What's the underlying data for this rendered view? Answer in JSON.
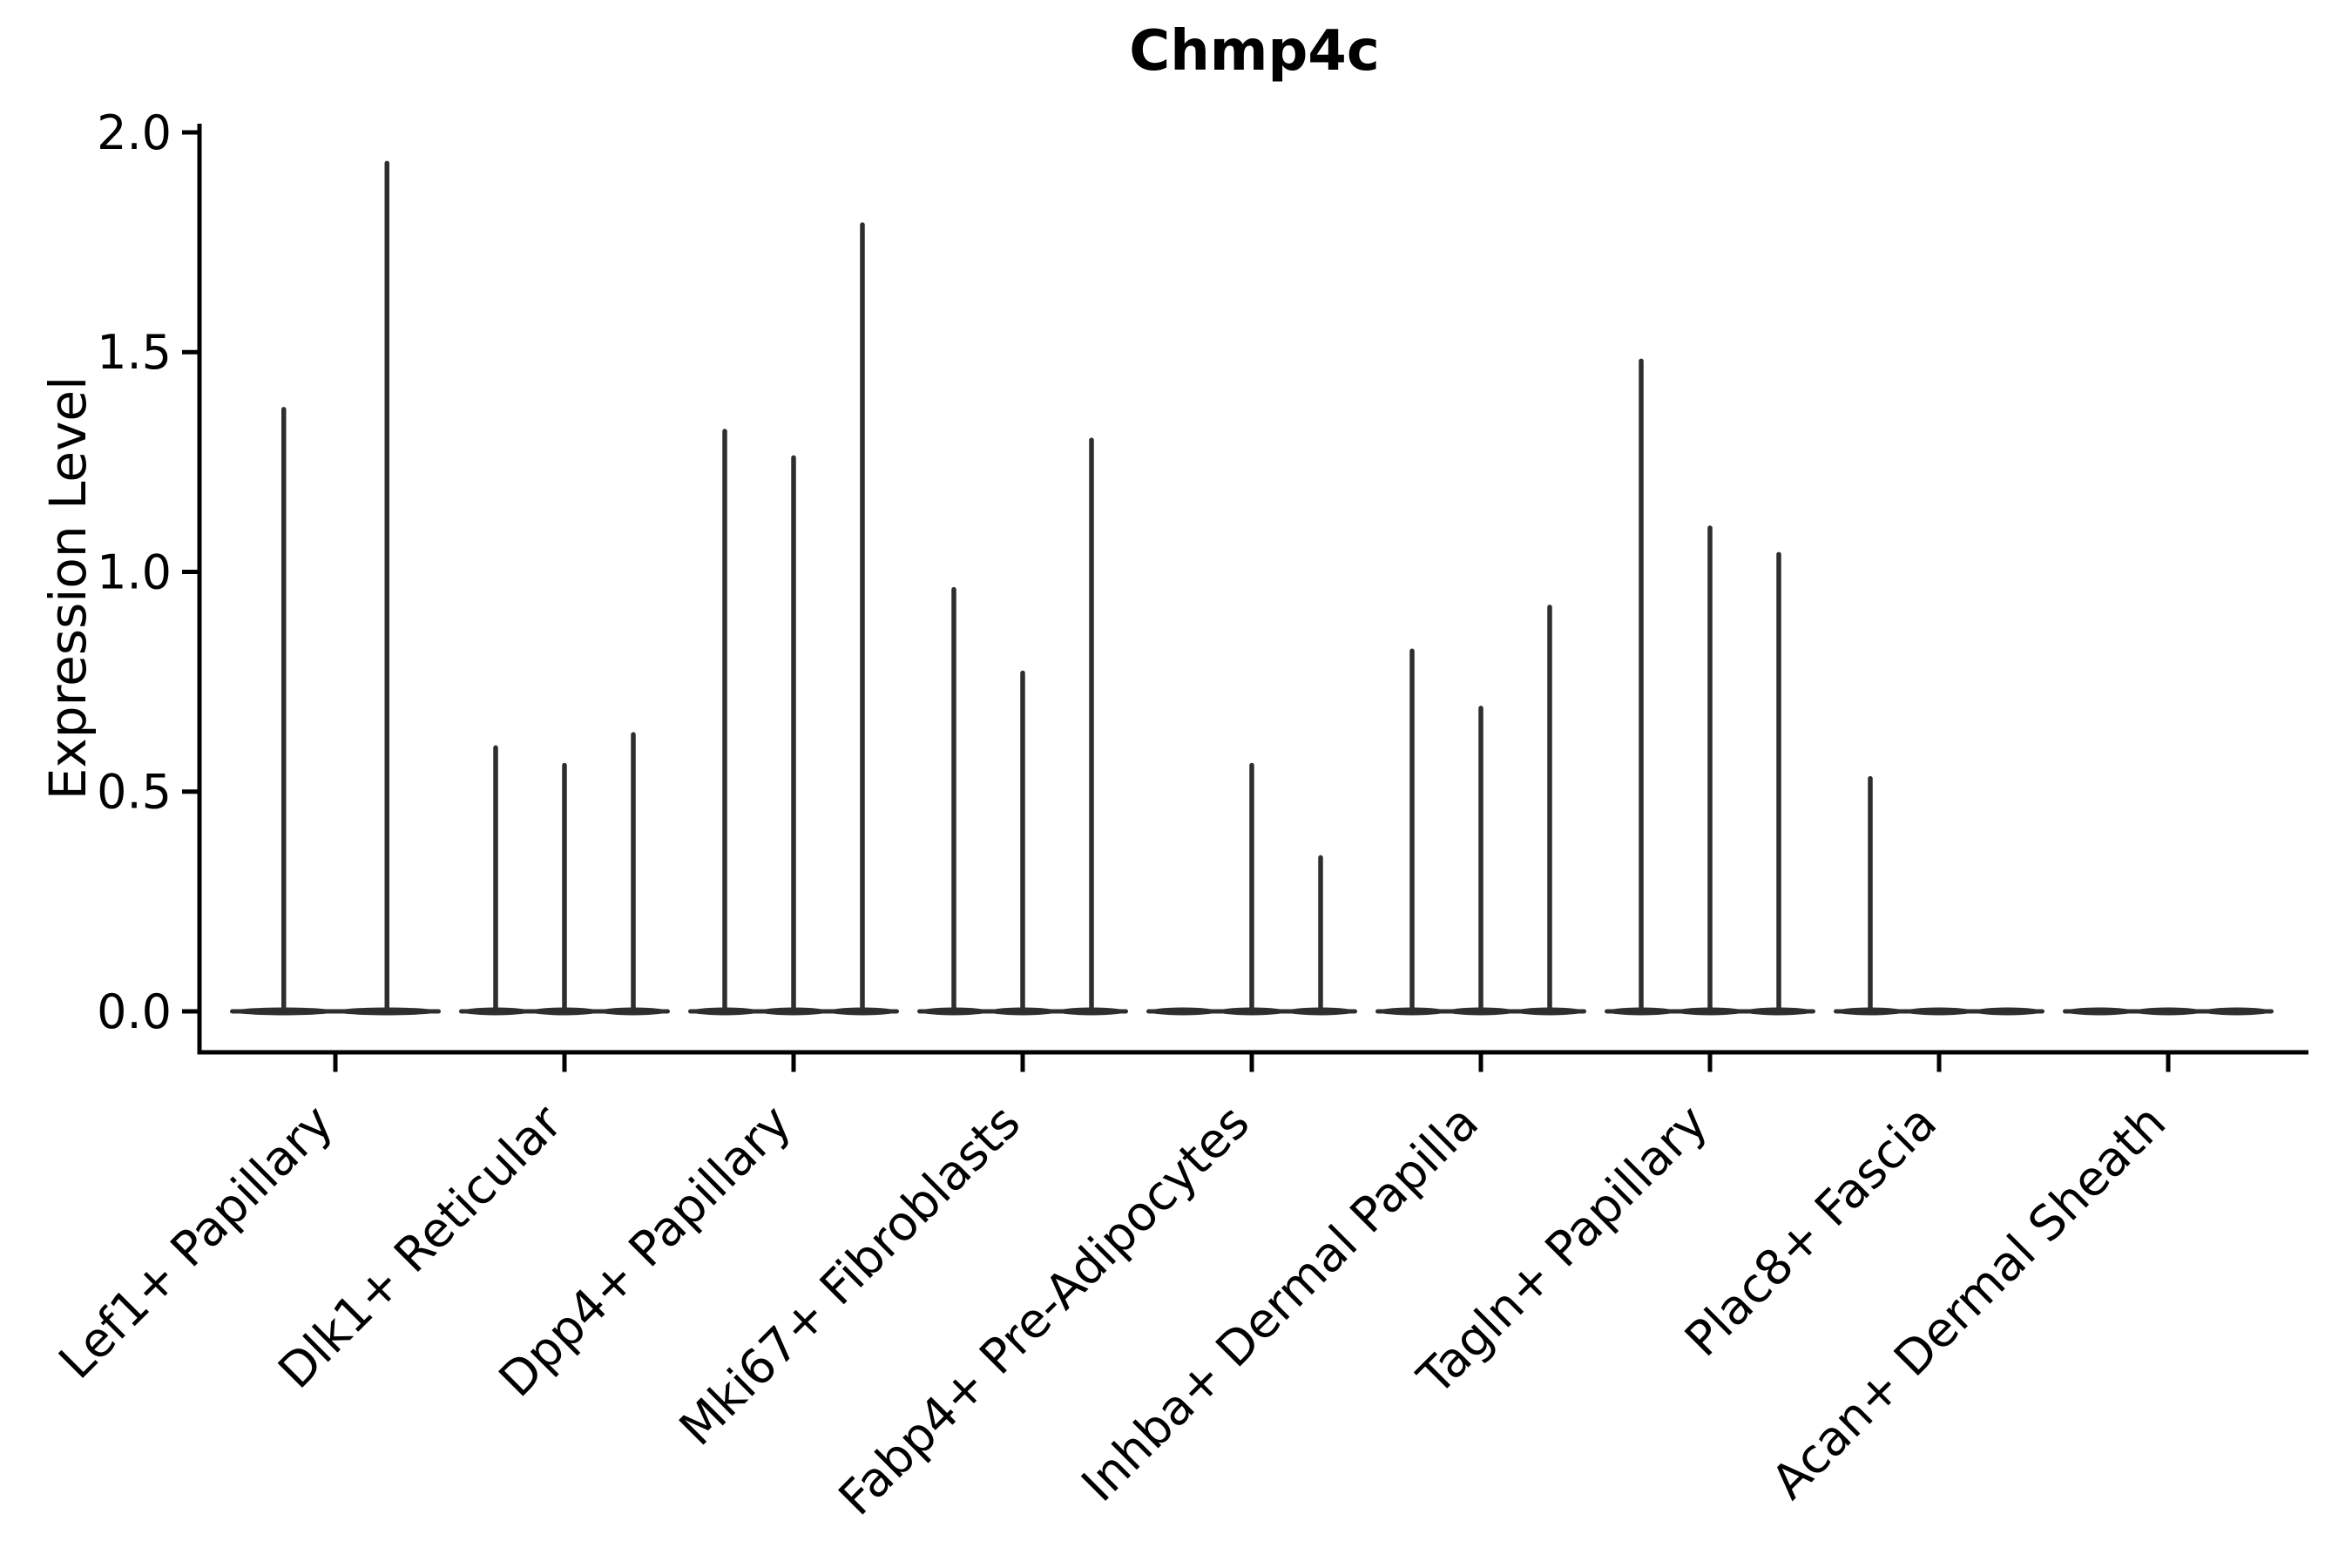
{
  "chart_data": {
    "type": "violin",
    "title": "Chmp4c",
    "ylabel": "Expression Level",
    "xlabel": "",
    "ylim": [
      0.0,
      2.0
    ],
    "yticks": [
      "0.0",
      "0.5",
      "1.0",
      "1.5",
      "2.0"
    ],
    "grid": false,
    "legend": "none",
    "x_tick_rotation_deg": 45,
    "categories": [
      "Lef1+ Papillary",
      "Dlk1+ Reticular",
      "Dpp4+ Papillary",
      "Mki67+ Fibroblasts",
      "Fabp4+ Pre-Adipocytes",
      "Inhba+ Dermal Papilla",
      "Tagln+ Papillary",
      "Plac8+ Fascia",
      "Acan+ Dermal Sheath"
    ],
    "violins": [
      {
        "category": "Lef1+ Papillary",
        "maxima": [
          1.37,
          1.93
        ]
      },
      {
        "category": "Dlk1+ Reticular",
        "maxima": [
          0.6,
          0.56,
          0.63
        ]
      },
      {
        "category": "Dpp4+ Papillary",
        "maxima": [
          1.32,
          1.26,
          1.79
        ]
      },
      {
        "category": "Mki67+ Fibroblasts",
        "maxima": [
          0.96,
          0.77,
          1.3
        ]
      },
      {
        "category": "Fabp4+ Pre-Adipocytes",
        "maxima": [
          0.0,
          0.56,
          0.35
        ]
      },
      {
        "category": "Inhba+ Dermal Papilla",
        "maxima": [
          0.82,
          0.69,
          0.92
        ]
      },
      {
        "category": "Tagln+ Papillary",
        "maxima": [
          1.48,
          1.1,
          1.04
        ]
      },
      {
        "category": "Plac8+ Fascia",
        "maxima": [
          0.53,
          0.0,
          0.0
        ]
      },
      {
        "category": "Acan+ Dermal Sheath",
        "maxima": [
          0.0,
          0.0,
          0.0
        ]
      }
    ],
    "description": "Each category shows narrow violins collapsed at 0 with thin spikes reaching the listed maximum expression values; flat baseline blobs sit at y=0.",
    "colors": {
      "violin_line": "#2e2e2e",
      "axis": "#000000",
      "background": "#ffffff"
    }
  }
}
